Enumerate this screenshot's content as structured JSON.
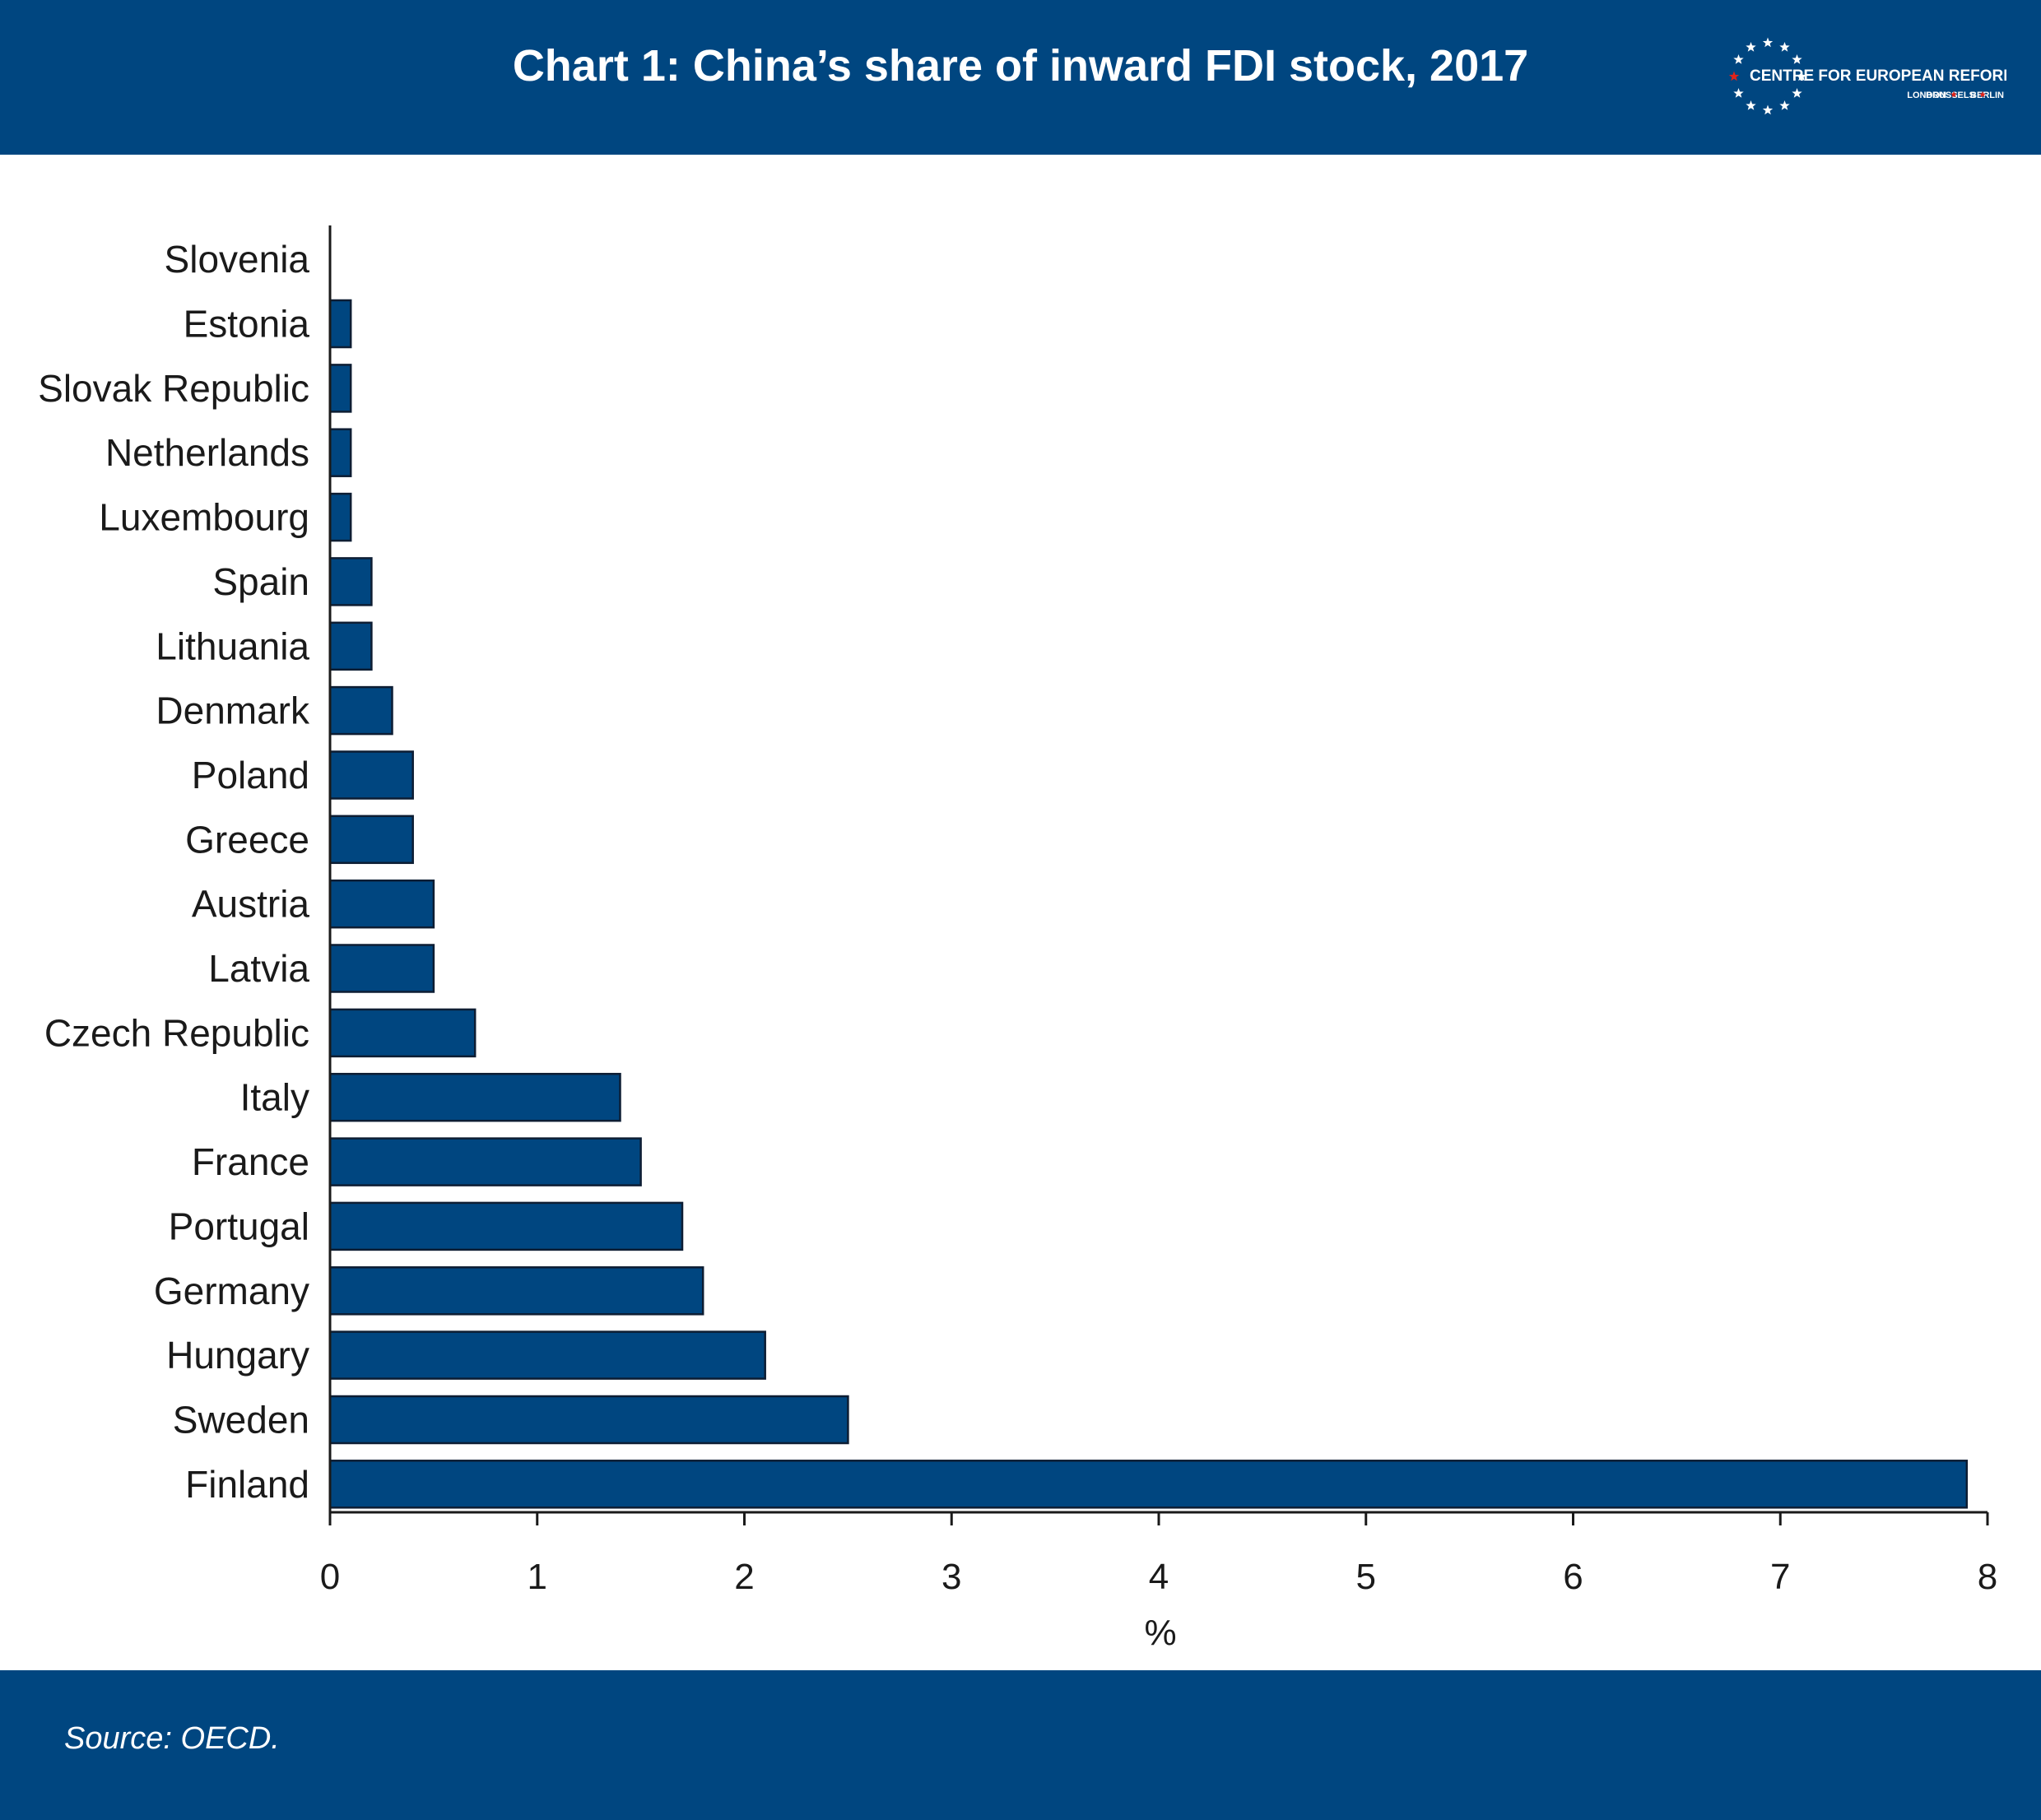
{
  "header": {
    "title": "Chart 1: China’s share of inward FDI stock, 2017",
    "logo": {
      "name": "CENTRE FOR EUROPEAN REFORM",
      "cities": [
        "LONDON",
        "BRUSSELS",
        "BERLIN"
      ],
      "star_color": "#ffffff",
      "accent_star_color": "#e2231a"
    }
  },
  "chart_data": {
    "type": "bar",
    "orientation": "horizontal",
    "title": "Chart 1: China’s share of inward FDI stock, 2017",
    "xlabel": "%",
    "ylabel": "",
    "xlim": [
      0,
      8
    ],
    "xticks": [
      0,
      1,
      2,
      3,
      4,
      5,
      6,
      7,
      8
    ],
    "categories": [
      "Slovenia",
      "Estonia",
      "Slovak Republic",
      "Netherlands",
      "Luxembourg",
      "Spain",
      "Lithuania",
      "Denmark",
      "Poland",
      "Greece",
      "Austria",
      "Latvia",
      "Czech Republic",
      "Italy",
      "France",
      "Portugal",
      "Germany",
      "Hungary",
      "Sweden",
      "Finland"
    ],
    "values": [
      0,
      0.1,
      0.1,
      0.1,
      0.1,
      0.2,
      0.2,
      0.3,
      0.4,
      0.4,
      0.5,
      0.5,
      0.7,
      1.4,
      1.5,
      1.7,
      1.8,
      2.1,
      2.5,
      7.9
    ],
    "bar_color": "#004680",
    "grid": false,
    "legend": "none"
  },
  "footer": {
    "source": "Source: OECD."
  }
}
